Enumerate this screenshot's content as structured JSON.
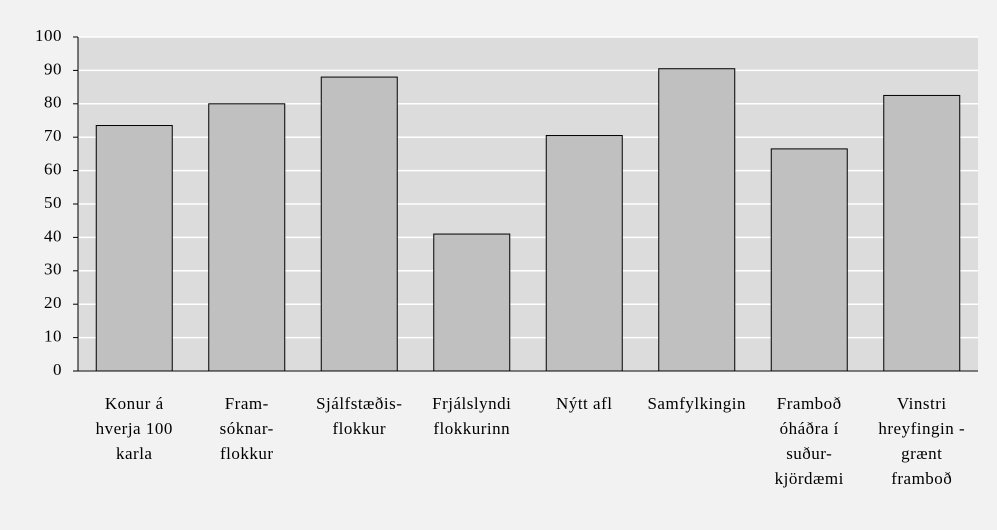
{
  "chart_data": {
    "type": "bar",
    "categories": [
      [
        "Konur á",
        "hverja 100",
        "karla"
      ],
      [
        "Fram-",
        "sóknar-",
        "flokkur"
      ],
      [
        "Sjálfstæðis-",
        "flokkur"
      ],
      [
        "Frjálslyndi",
        "flokkurinn"
      ],
      [
        "Nýtt afl"
      ],
      [
        "Samfylkingin"
      ],
      [
        "Framboð",
        "óháðra í",
        "suður-",
        "kjördæmi"
      ],
      [
        "Vinstri",
        "hreyfingin -",
        "grænt",
        "framboð"
      ]
    ],
    "values": [
      73.5,
      80,
      88,
      41,
      70.5,
      90.5,
      66.5,
      82.5
    ],
    "color": "#c0c0c0",
    "ylim": [
      0,
      100
    ],
    "yticks": [
      0,
      10,
      20,
      30,
      40,
      50,
      60,
      70,
      80,
      90,
      100
    ],
    "grid": true
  }
}
